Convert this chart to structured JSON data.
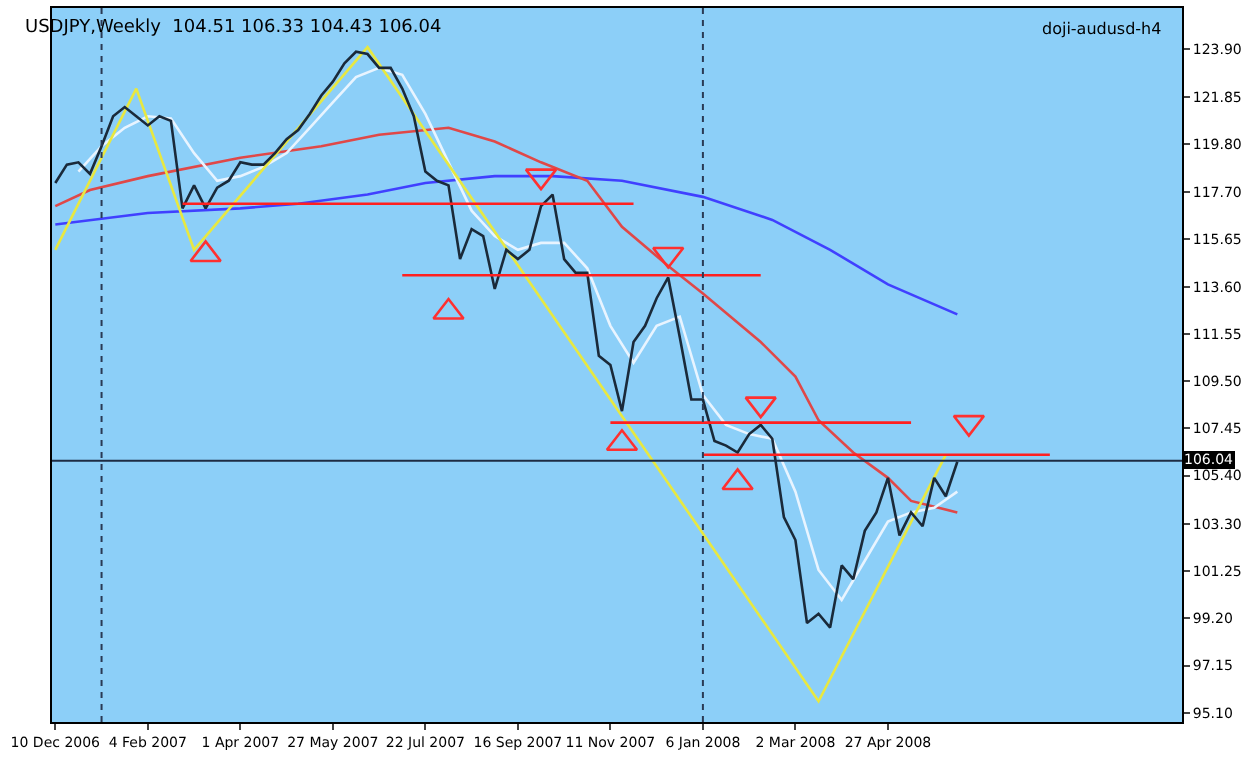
{
  "chart_data": {
    "type": "line",
    "title": "USDJPY,Weekly  104.51 106.33 104.43 106.04",
    "annotations": [
      "doji-audusd-h4"
    ],
    "xlim": [
      "2006-12-08",
      "2008-10-22"
    ],
    "xticks": [
      {
        "value": "2006-12-10",
        "label": "10 Dec 2006"
      },
      {
        "value": "2007-02-04",
        "label": "4 Feb 2007"
      },
      {
        "value": "2007-04-01",
        "label": "1 Apr 2007"
      },
      {
        "value": "2007-05-27",
        "label": "27 May 2007"
      },
      {
        "value": "2007-07-22",
        "label": "22 Jul 2007"
      },
      {
        "value": "2007-09-16",
        "label": "16 Sep 2007"
      },
      {
        "value": "2007-11-11",
        "label": "11 Nov 2007"
      },
      {
        "value": "2008-01-06",
        "label": "6 Jan 2008"
      },
      {
        "value": "2008-03-02",
        "label": "2 Mar 2008"
      },
      {
        "value": "2008-04-27",
        "label": "27 Apr 2008"
      }
    ],
    "ylim": [
      94.7,
      125.7
    ],
    "yticks": [
      {
        "value": 123.9,
        "label": "123.90"
      },
      {
        "value": 121.85,
        "label": "121.85"
      },
      {
        "value": 119.8,
        "label": "119.80"
      },
      {
        "value": 117.7,
        "label": "117.70"
      },
      {
        "value": 115.65,
        "label": "115.65"
      },
      {
        "value": 113.6,
        "label": "113.60"
      },
      {
        "value": 111.55,
        "label": "111.55"
      },
      {
        "value": 109.5,
        "label": "109.50"
      },
      {
        "value": 107.45,
        "label": "107.45"
      },
      {
        "value": 105.4,
        "label": "105.40"
      },
      {
        "value": 103.3,
        "label": "103.30"
      },
      {
        "value": 101.25,
        "label": "101.25"
      },
      {
        "value": 99.2,
        "label": "99.20"
      },
      {
        "value": 97.15,
        "label": "97.15"
      },
      {
        "value": 95.1,
        "label": "95.10"
      }
    ],
    "grid": false,
    "ref_lines": [
      {
        "axis": "x",
        "value": "2007-01-07",
        "color": "#2a3a55",
        "line_style": "dotted"
      },
      {
        "axis": "x",
        "value": "2008-01-06",
        "color": "#2a3a55",
        "line_style": "dotted"
      },
      {
        "axis": "y",
        "value": 106.04,
        "label": "106.04",
        "color": "#1e2c44",
        "line_style": "solid"
      }
    ],
    "series": [
      {
        "color": "#4040ff",
        "x": [
          "2006-12-10",
          "2007-02-04",
          "2007-04-01",
          "2007-05-06",
          "2007-06-17",
          "2007-07-22",
          "2007-09-02",
          "2007-10-07",
          "2007-11-18",
          "2008-01-06",
          "2008-02-17",
          "2008-03-23",
          "2008-04-27",
          "2008-06-08"
        ],
        "values": [
          116.3,
          116.8,
          117.0,
          117.2,
          117.6,
          118.1,
          118.4,
          118.4,
          118.2,
          117.5,
          116.5,
          115.2,
          113.7,
          112.4
        ]
      },
      {
        "color": "#e04848",
        "x": [
          "2006-12-10",
          "2006-12-31",
          "2007-02-04",
          "2007-04-01",
          "2007-05-20",
          "2007-06-24",
          "2007-08-05",
          "2007-09-02",
          "2007-09-30",
          "2007-10-28",
          "2007-11-18",
          "2007-12-16",
          "2008-01-06",
          "2008-02-10",
          "2008-03-02",
          "2008-03-16",
          "2008-04-06",
          "2008-04-27",
          "2008-05-11",
          "2008-06-08"
        ],
        "values": [
          117.1,
          117.8,
          118.4,
          119.2,
          119.7,
          120.2,
          120.5,
          119.9,
          119.0,
          118.2,
          116.2,
          114.5,
          113.3,
          111.2,
          109.7,
          107.8,
          106.4,
          105.3,
          104.3,
          103.8
        ]
      },
      {
        "color": "#e8f4ff",
        "x": [
          "2006-12-24",
          "2007-01-07",
          "2007-01-21",
          "2007-02-04",
          "2007-02-18",
          "2007-03-04",
          "2007-03-18",
          "2007-04-01",
          "2007-04-15",
          "2007-04-29",
          "2007-05-13",
          "2007-05-27",
          "2007-06-10",
          "2007-06-24",
          "2007-07-08",
          "2007-07-22",
          "2007-08-05",
          "2007-08-19",
          "2007-09-02",
          "2007-09-16",
          "2007-09-30",
          "2007-10-14",
          "2007-10-28",
          "2007-11-11",
          "2007-11-25",
          "2007-12-09",
          "2007-12-23",
          "2008-01-06",
          "2008-01-20",
          "2008-02-03",
          "2008-02-17",
          "2008-03-02",
          "2008-03-16",
          "2008-03-30",
          "2008-04-13",
          "2008-04-27",
          "2008-05-11",
          "2008-05-25",
          "2008-06-08"
        ],
        "values": [
          118.6,
          119.7,
          120.5,
          121.0,
          120.9,
          119.4,
          118.2,
          118.4,
          118.8,
          119.4,
          120.5,
          121.6,
          122.7,
          123.1,
          122.8,
          121.1,
          119.0,
          116.9,
          115.8,
          115.2,
          115.5,
          115.5,
          114.4,
          111.9,
          110.3,
          111.9,
          112.3,
          108.9,
          107.6,
          107.2,
          107.0,
          104.7,
          101.3,
          100.0,
          101.7,
          103.4,
          103.8,
          104.0,
          104.7
        ]
      },
      {
        "color": "#e8e840",
        "x": [
          "2006-12-10",
          "2007-01-28",
          "2007-03-04",
          "2007-06-17",
          "2008-03-16",
          "2008-06-01"
        ],
        "values": [
          115.2,
          122.2,
          115.2,
          124.0,
          95.6,
          106.3
        ]
      },
      {
        "color": "#1a2a3a",
        "x": [
          "2006-12-10",
          "2006-12-17",
          "2006-12-24",
          "2006-12-31",
          "2007-01-07",
          "2007-01-14",
          "2007-01-21",
          "2007-01-28",
          "2007-02-04",
          "2007-02-11",
          "2007-02-18",
          "2007-02-25",
          "2007-03-04",
          "2007-03-11",
          "2007-03-18",
          "2007-03-25",
          "2007-04-01",
          "2007-04-08",
          "2007-04-15",
          "2007-04-22",
          "2007-04-29",
          "2007-05-06",
          "2007-05-13",
          "2007-05-20",
          "2007-05-27",
          "2007-06-03",
          "2007-06-10",
          "2007-06-17",
          "2007-06-24",
          "2007-07-01",
          "2007-07-08",
          "2007-07-15",
          "2007-07-22",
          "2007-07-29",
          "2007-08-05",
          "2007-08-12",
          "2007-08-19",
          "2007-08-26",
          "2007-09-02",
          "2007-09-09",
          "2007-09-16",
          "2007-09-23",
          "2007-09-30",
          "2007-10-07",
          "2007-10-14",
          "2007-10-21",
          "2007-10-28",
          "2007-11-04",
          "2007-11-11",
          "2007-11-18",
          "2007-11-25",
          "2007-12-02",
          "2007-12-09",
          "2007-12-16",
          "2007-12-23",
          "2007-12-30",
          "2008-01-06",
          "2008-01-13",
          "2008-01-20",
          "2008-01-27",
          "2008-02-03",
          "2008-02-10",
          "2008-02-17",
          "2008-02-24",
          "2008-03-02",
          "2008-03-09",
          "2008-03-16",
          "2008-03-23",
          "2008-03-30",
          "2008-04-06",
          "2008-04-13",
          "2008-04-20",
          "2008-04-27",
          "2008-05-04",
          "2008-05-11",
          "2008-05-18",
          "2008-05-25",
          "2008-06-01",
          "2008-06-08"
        ],
        "values": [
          118.1,
          118.9,
          119.0,
          118.5,
          119.7,
          121.0,
          121.4,
          121.0,
          120.6,
          121.0,
          120.8,
          117.0,
          118.0,
          117.0,
          117.9,
          118.2,
          119.0,
          118.9,
          118.9,
          119.4,
          120.0,
          120.4,
          121.1,
          121.9,
          122.5,
          123.3,
          123.8,
          123.7,
          123.1,
          123.1,
          122.2,
          121.0,
          118.6,
          118.2,
          118.0,
          114.8,
          116.1,
          115.8,
          113.5,
          115.2,
          114.8,
          115.2,
          117.1,
          117.6,
          114.8,
          114.2,
          114.2,
          110.6,
          110.2,
          108.2,
          111.2,
          111.9,
          113.1,
          114.0,
          111.4,
          108.7,
          108.7,
          106.9,
          106.7,
          106.4,
          107.2,
          107.6,
          107.0,
          103.6,
          102.6,
          99.0,
          99.4,
          98.8,
          101.5,
          100.9,
          103.0,
          103.8,
          105.3,
          102.8,
          103.8,
          103.2,
          105.3,
          104.5,
          106.0
        ]
      },
      {
        "color": "#ff2020",
        "x": [
          "2007-02-25",
          "2007-11-25"
        ],
        "values": [
          117.2,
          117.2
        ]
      },
      {
        "color": "#ff2020",
        "x": [
          "2007-07-08",
          "2008-02-10"
        ],
        "values": [
          114.1,
          114.1
        ]
      },
      {
        "color": "#ff2020",
        "x": [
          "2007-11-11",
          "2008-05-11"
        ],
        "values": [
          107.7,
          107.7
        ]
      },
      {
        "color": "#ff2020",
        "x": [
          "2008-01-06",
          "2008-08-03"
        ],
        "values": [
          106.3,
          106.3
        ]
      },
      {
        "type": "scatter",
        "marker": "triangle",
        "color": "#ff3030",
        "x": [
          "2007-03-11",
          "2007-08-05",
          "2007-11-18",
          "2008-01-27"
        ],
        "values": [
          115.0,
          112.5,
          106.8,
          105.1
        ]
      },
      {
        "type": "scatter",
        "marker": "triangle-down",
        "color": "#ff3030",
        "x": [
          "2007-09-30",
          "2007-12-16",
          "2008-02-10",
          "2008-06-15"
        ],
        "values": [
          118.4,
          115.0,
          108.5,
          107.7
        ]
      }
    ]
  }
}
